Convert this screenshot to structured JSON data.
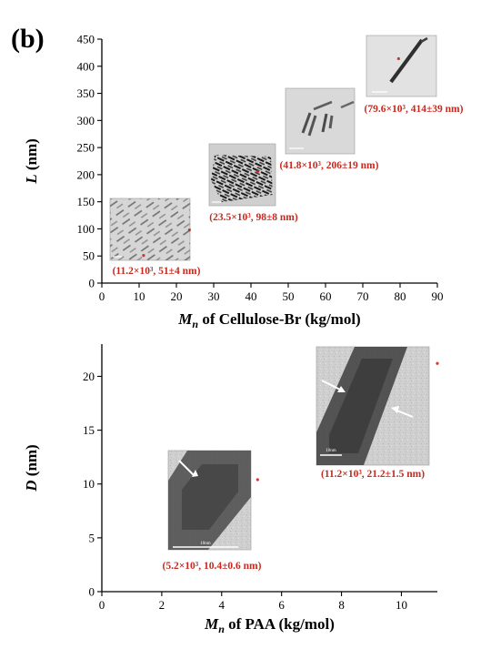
{
  "panel_label": "(b)",
  "chart_data": [
    {
      "type": "scatter",
      "xlabel": {
        "var": "M",
        "sub": "n",
        "rest": " of Cellulose-Br (kg/mol)"
      },
      "ylabel": {
        "var": "L",
        "rest": " (nm)"
      },
      "xlim": [
        0,
        90
      ],
      "ylim": [
        0,
        450
      ],
      "xticks": [
        "0",
        "10",
        "20",
        "30",
        "40",
        "50",
        "60",
        "70",
        "80",
        "90"
      ],
      "yticks": [
        "0",
        "50",
        "100",
        "150",
        "200",
        "250",
        "300",
        "350",
        "400",
        "450"
      ],
      "grid": false,
      "legend": "none",
      "points": [
        {
          "x": 11.2,
          "y": 51,
          "label": "(11.2×10³, 51±4 nm)"
        },
        {
          "x": 23.5,
          "y": 98,
          "label": "(23.5×10³, 98±8 nm)"
        },
        {
          "x": 41.8,
          "y": 206,
          "label": "(41.8×10³, 206±19 nm)"
        },
        {
          "x": 79.6,
          "y": 414,
          "label": "(79.6×10³, 414±39 nm)"
        }
      ],
      "annotation_color": "#c8281e"
    },
    {
      "type": "scatter",
      "xlabel": {
        "var": "M",
        "sub": "n",
        "rest": " of PAA (kg/mol)"
      },
      "ylabel": {
        "var": "D",
        "rest": " (nm)"
      },
      "xlim": [
        0,
        11.2
      ],
      "ylim": [
        0,
        23
      ],
      "xticks": [
        "0",
        "2",
        "4",
        "6",
        "8",
        "10"
      ],
      "yticks": [
        "0",
        "5",
        "10",
        "15",
        "20"
      ],
      "grid": false,
      "legend": "none",
      "points": [
        {
          "x": 5.2,
          "y": 10.4,
          "label": "(5.2×10³, 10.4±0.6 nm)",
          "scale_bar": "10nm"
        },
        {
          "x": 11.2,
          "y": 21.2,
          "label": "(11.2×10³, 21.2±1.5 nm)",
          "scale_bar": "10nm"
        }
      ],
      "annotation_color": "#c8281e"
    }
  ]
}
